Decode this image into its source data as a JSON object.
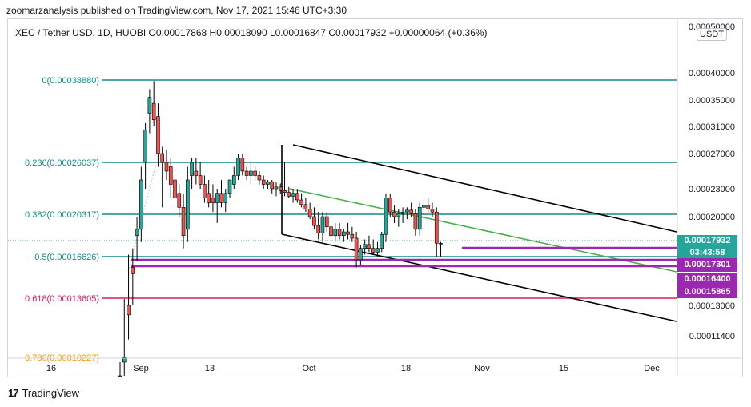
{
  "header": {
    "text": "zoomarzanalysis published on TradingView.com, Nov 17, 2021 15:46 UTC+3:30"
  },
  "symbol": {
    "text": "XEC / Tether USD, 1D, HUOBI O0.00017868 H0.00018090 L0.00016847 C0.00017932 +0.00000064 (+0.36%)"
  },
  "currency_badge": "USDT",
  "footer": {
    "brand": "TradingView"
  },
  "price_tags": {
    "current": "0.00017932",
    "countdown": "03:43:58",
    "level1": "0.00017301",
    "level2": "0.00016400",
    "level3": "0.00015865"
  },
  "colors": {
    "up": "#26a69a",
    "down": "#ef5350",
    "fib": "#138a84",
    "fib618": "#d81b60",
    "support": "#9c27b0",
    "channel": "#000000",
    "trendline": "#4caf50"
  },
  "chart_data": {
    "type": "candlestick",
    "yaxis_ticks": [
      "0.00050000",
      "0.00040000",
      "0.00035000",
      "0.00031000",
      "0.00027000",
      "0.00023000",
      "0.00020000",
      "0.00013000",
      "0.00011400"
    ],
    "xaxis_ticks": [
      "16",
      "Sep",
      "13",
      "Oct",
      "18",
      "Nov",
      "15",
      "Dec"
    ],
    "fib_levels": [
      {
        "label": "0(0.00038880)",
        "value": 0.0003888
      },
      {
        "label": "0.236(0.00026037)",
        "value": 0.00026037
      },
      {
        "label": "0.382(0.00020317)",
        "value": 0.00020317
      },
      {
        "label": "0.5(0.00016626)",
        "value": 0.00016626
      },
      {
        "label": "0.618(0.00013605)",
        "value": 0.00013605
      },
      {
        "label": "0.786(0.00010227)",
        "value": 0.00010227
      }
    ],
    "candles": [
      [
        7e-05,
        8.5e-05,
        6e-05,
        7e-05
      ],
      [
        8.5e-05,
        0.000135,
        7e-05,
        9e-05
      ],
      [
        0.00013,
        0.00017,
        0.00011,
        0.000125
      ],
      [
        0.00016,
        0.000175,
        0.00013,
        0.000155
      ],
      [
        0.000185,
        0.0002,
        0.000165,
        0.00019
      ],
      [
        0.00019,
        0.000255,
        0.00018,
        0.00024
      ],
      [
        0.00026,
        0.000315,
        0.00023,
        0.000305
      ],
      [
        0.00033,
        0.00037,
        0.0003,
        0.000355
      ],
      [
        0.000345,
        0.000385,
        0.00031,
        0.00032
      ],
      [
        0.000325,
        0.000345,
        0.000255,
        0.00027
      ],
      [
        0.00027,
        0.00028,
        0.00021,
        0.00026
      ],
      [
        0.00026,
        0.000275,
        0.00024,
        0.00025
      ],
      [
        0.000255,
        0.000265,
        0.00022,
        0.000235
      ],
      [
        0.00024,
        0.00025,
        0.000205,
        0.00022
      ],
      [
        0.000225,
        0.000235,
        0.0002,
        0.00021
      ],
      [
        0.00021,
        0.000225,
        0.000175,
        0.000185
      ],
      [
        0.00019,
        0.000255,
        0.00018,
        0.00024
      ],
      [
        0.000245,
        0.000265,
        0.00023,
        0.00026
      ],
      [
        0.00025,
        0.000265,
        0.000235,
        0.000245
      ],
      [
        0.000245,
        0.00026,
        0.00023,
        0.000235
      ],
      [
        0.000235,
        0.000245,
        0.000215,
        0.00022
      ],
      [
        0.000225,
        0.00024,
        0.00021,
        0.000215
      ],
      [
        0.00022,
        0.000235,
        0.000205,
        0.000215
      ],
      [
        0.000215,
        0.00023,
        0.000195,
        0.000225
      ],
      [
        0.000225,
        0.00024,
        0.00021,
        0.000215
      ],
      [
        0.000215,
        0.00023,
        0.000205,
        0.000225
      ],
      [
        0.000225,
        0.00024,
        0.00022,
        0.00024
      ],
      [
        0.000235,
        0.000255,
        0.00023,
        0.000245
      ],
      [
        0.000245,
        0.00027,
        0.00024,
        0.000265
      ],
      [
        0.000265,
        0.00027,
        0.000245,
        0.00025
      ],
      [
        0.00025,
        0.000255,
        0.00024,
        0.000245
      ],
      [
        0.000245,
        0.00026,
        0.000235,
        0.00025
      ],
      [
        0.00025,
        0.000255,
        0.00024,
        0.000245
      ],
      [
        0.000245,
        0.00025,
        0.000235,
        0.00024
      ],
      [
        0.00024,
        0.000245,
        0.00023,
        0.000235
      ],
      [
        0.000235,
        0.00024,
        0.00023,
        0.000238
      ],
      [
        0.000238,
        0.00024,
        0.000225,
        0.00023
      ],
      [
        0.00023,
        0.000238,
        0.000222,
        0.000232
      ],
      [
        0.000232,
        0.000236,
        0.000224,
        0.000228
      ],
      [
        0.000228,
        0.00026,
        0.000222,
        0.000226
      ],
      [
        0.000226,
        0.000232,
        0.00022,
        0.000222
      ],
      [
        0.000222,
        0.00023,
        0.000215,
        0.000225
      ],
      [
        0.000225,
        0.00023,
        0.000215,
        0.000218
      ],
      [
        0.000218,
        0.000225,
        0.00021,
        0.000213
      ],
      [
        0.000213,
        0.00022,
        0.000205,
        0.000208
      ],
      [
        0.000208,
        0.000215,
        0.000198,
        0.0002
      ],
      [
        0.0002,
        0.00021,
        0.00019,
        0.000193
      ],
      [
        0.000193,
        0.000205,
        0.000182,
        0.000187
      ],
      [
        0.000187,
        0.000205,
        0.00018,
        0.0002
      ],
      [
        0.0002,
        0.000205,
        0.000188,
        0.000192
      ],
      [
        0.000192,
        0.000198,
        0.000182,
        0.000185
      ],
      [
        0.000185,
        0.000195,
        0.00018,
        0.00019
      ],
      [
        0.00019,
        0.000195,
        0.000182,
        0.000185
      ],
      [
        0.000185,
        0.00019,
        0.00018,
        0.000188
      ],
      [
        0.000188,
        0.000195,
        0.000182,
        0.000186
      ],
      [
        0.000186,
        0.000192,
        0.00018,
        0.000183
      ],
      [
        0.000183,
        0.000188,
        0.00016,
        0.000166
      ],
      [
        0.000166,
        0.000178,
        0.000162,
        0.000175
      ],
      [
        0.000175,
        0.000182,
        0.00017,
        0.000178
      ],
      [
        0.000178,
        0.000185,
        0.000172,
        0.000175
      ],
      [
        0.000175,
        0.000182,
        0.00017,
        0.000172
      ],
      [
        0.000172,
        0.00018,
        0.000168,
        0.000175
      ],
      [
        0.000175,
        0.000188,
        0.000172,
        0.000186
      ],
      [
        0.000186,
        0.000225,
        0.00018,
        0.00022
      ],
      [
        0.00022,
        0.000225,
        0.0002,
        0.000205
      ],
      [
        0.000205,
        0.000212,
        0.000195,
        0.0002
      ],
      [
        0.0002,
        0.000208,
        0.000192,
        0.000203
      ],
      [
        0.000203,
        0.00021,
        0.000195,
        0.000205
      ],
      [
        0.000205,
        0.00021,
        0.000198,
        0.000207
      ],
      [
        0.000207,
        0.000215,
        0.0002,
        0.000203
      ],
      [
        0.000203,
        0.000208,
        0.000185,
        0.00019
      ],
      [
        0.00019,
        0.000215,
        0.000185,
        0.00021
      ],
      [
        0.00021,
        0.000218,
        0.000198,
        0.000212
      ],
      [
        0.000212,
        0.00022,
        0.000205,
        0.000208
      ],
      [
        0.000208,
        0.000215,
        0.0002,
        0.000205
      ],
      [
        0.000205,
        0.00021,
        0.000168,
        0.000179
      ],
      [
        0.000179,
        0.00018,
        0.000168,
        0.000179
      ]
    ]
  }
}
